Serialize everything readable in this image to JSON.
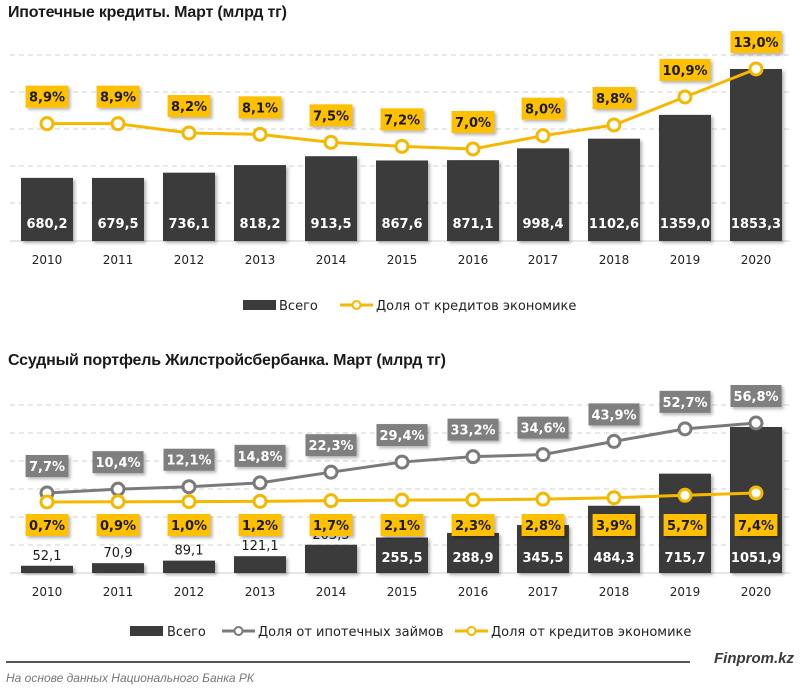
{
  "colors": {
    "bar": "#3b3b3b",
    "yellow": "#f5b800",
    "yellow_label": "#ffc000",
    "gray_line": "#7a7a7a",
    "gray_label": "#7f7f7f",
    "grid": "#d0d0d0"
  },
  "chart_data": [
    {
      "type": "bar",
      "title": "Ипотечные кредиты. Март (млрд тг)",
      "categories": [
        "2010",
        "2011",
        "2012",
        "2013",
        "2014",
        "2015",
        "2016",
        "2017",
        "2018",
        "2019",
        "2020"
      ],
      "series": [
        {
          "name": "Всего",
          "kind": "bar",
          "values": [
            680.2,
            679.5,
            736.1,
            818.2,
            913.5,
            867.6,
            871.1,
            998.4,
            1102.6,
            1359.0,
            1853.3
          ],
          "labels": [
            "680,2",
            "679,5",
            "736,1",
            "818,2",
            "913,5",
            "867,6",
            "871,1",
            "998,4",
            "1102,6",
            "1359,0",
            "1853,3"
          ]
        },
        {
          "name": "Доля от кредитов экономике",
          "kind": "line",
          "unit": "%",
          "values": [
            8.9,
            8.9,
            8.2,
            8.1,
            7.5,
            7.2,
            7.0,
            8.0,
            8.8,
            10.9,
            13.0
          ],
          "labels": [
            "8,9%",
            "8,9%",
            "8,2%",
            "8,1%",
            "7,5%",
            "7,2%",
            "7,0%",
            "8,0%",
            "8,8%",
            "10,9%",
            "13,0%"
          ]
        }
      ],
      "legend": [
        "Всего",
        "Доля от кредитов экономике"
      ],
      "legend_position": "bottom",
      "grid": true,
      "xlabel": "",
      "ylabel": ""
    },
    {
      "type": "bar",
      "title": "Ссудный портфель Жилстройсбербанка. Март (млрд тг)",
      "categories": [
        "2010",
        "2011",
        "2012",
        "2013",
        "2014",
        "2015",
        "2016",
        "2017",
        "2018",
        "2019",
        "2020"
      ],
      "series": [
        {
          "name": "Всего",
          "kind": "bar",
          "values": [
            52.1,
            70.9,
            89.1,
            121.1,
            203.5,
            255.5,
            288.9,
            345.5,
            484.3,
            715.7,
            1051.9
          ],
          "labels": [
            "52,1",
            "70,9",
            "89,1",
            "121,1",
            "203,5",
            "255,5",
            "288,9",
            "345,5",
            "484,3",
            "715,7",
            "1051,9"
          ]
        },
        {
          "name": "Доля от ипотечных займов",
          "kind": "line",
          "unit": "%",
          "values": [
            7.7,
            10.4,
            12.1,
            14.8,
            22.3,
            29.4,
            33.2,
            34.6,
            43.9,
            52.7,
            56.8
          ],
          "labels": [
            "7,7%",
            "10,4%",
            "12,1%",
            "14,8%",
            "22,3%",
            "29,4%",
            "33,2%",
            "34,6%",
            "43,9%",
            "52,7%",
            "56,8%"
          ]
        },
        {
          "name": "Доля от кредитов экономике",
          "kind": "line",
          "unit": "%",
          "values": [
            0.7,
            0.9,
            1.0,
            1.2,
            1.7,
            2.1,
            2.3,
            2.8,
            3.9,
            5.7,
            7.4
          ],
          "labels": [
            "0,7%",
            "0,9%",
            "1,0%",
            "1,2%",
            "1,7%",
            "2,1%",
            "2,3%",
            "2,8%",
            "3,9%",
            "5,7%",
            "7,4%"
          ]
        }
      ],
      "legend": [
        "Всего",
        "Доля от ипотечных займов",
        "Доля от кредитов экономике"
      ],
      "legend_position": "bottom",
      "grid": true,
      "xlabel": "",
      "ylabel": ""
    }
  ],
  "footer": {
    "brand": "Finprom.kz",
    "source": "На основе данных  Национального  Банка РК"
  }
}
